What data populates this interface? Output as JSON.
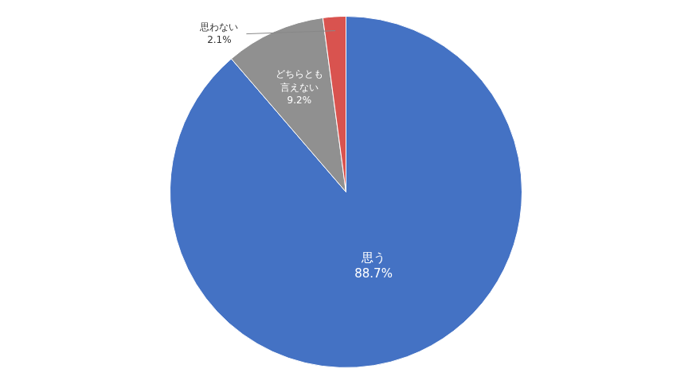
{
  "chart_data": {
    "type": "pie",
    "categories": [
      "思う",
      "どちらとも\n言えない",
      "思わない"
    ],
    "values": [
      88.7,
      9.2,
      2.1
    ],
    "value_labels": [
      "88.7%",
      "9.2%",
      "2.1%"
    ],
    "data_labels": true,
    "colors": [
      "#4472C4",
      "#909090",
      "#D9534F"
    ]
  }
}
